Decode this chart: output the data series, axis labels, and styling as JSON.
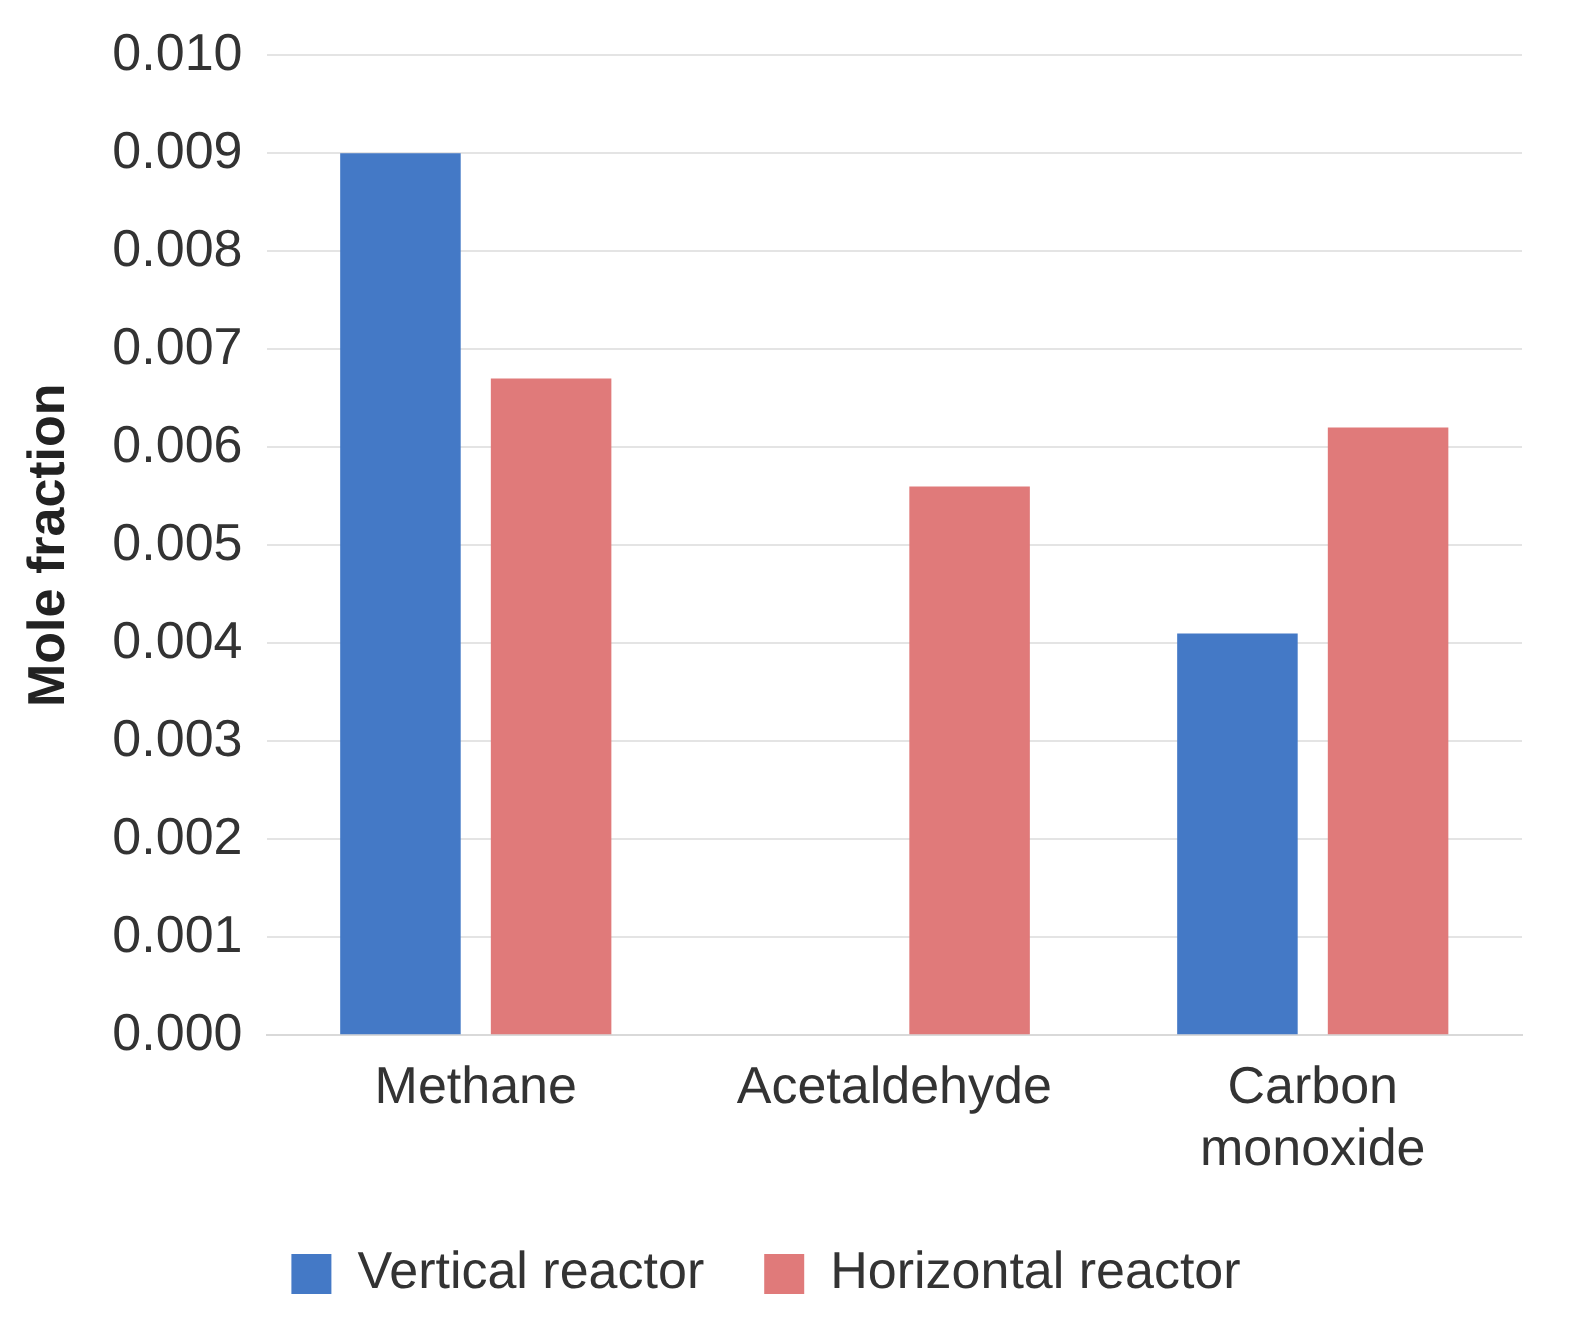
{
  "chart_data": {
    "type": "bar",
    "ylabel": "Mole fraction",
    "categories": [
      "Methane",
      "Acetaldehyde",
      "Carbon monoxide"
    ],
    "series": [
      {
        "name": "Vertical reactor",
        "color": "#4479c6",
        "values": [
          0.009,
          0,
          0.0041
        ]
      },
      {
        "name": "Horizontal reactor",
        "color": "#e07a7a",
        "values": [
          0.0067,
          0.0056,
          0.0062
        ]
      }
    ],
    "ylim": [
      0,
      0.01
    ],
    "yticks": [
      {
        "value": 0,
        "label": "0.000"
      },
      {
        "value": 0.001,
        "label": "0.001"
      },
      {
        "value": 0.002,
        "label": "0.002"
      },
      {
        "value": 0.003,
        "label": "0.003"
      },
      {
        "value": 0.004,
        "label": "0.004"
      },
      {
        "value": 0.005,
        "label": "0.005"
      },
      {
        "value": 0.006,
        "label": "0.006"
      },
      {
        "value": 0.007,
        "label": "0.007"
      },
      {
        "value": 0.008,
        "label": "0.008"
      },
      {
        "value": 0.009,
        "label": "0.009"
      },
      {
        "value": 0.01,
        "label": "0.010"
      }
    ],
    "grid": "y",
    "legend": "bottom"
  }
}
